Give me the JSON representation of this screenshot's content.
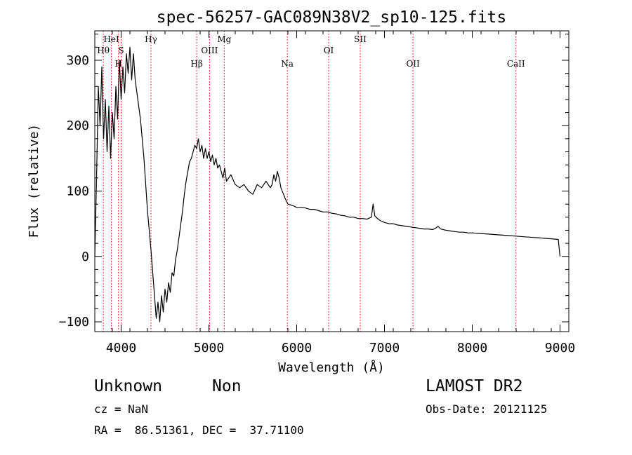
{
  "chart_data": {
    "type": "line",
    "title": "spec-56257-GAC089N38V2_sp10-125.fits",
    "xlabel": "Wavelength (Å)",
    "ylabel": "Flux (relative)",
    "xlim": [
      3700,
      9100
    ],
    "ylim": [
      -115,
      345
    ],
    "xticks": [
      4000,
      5000,
      6000,
      7000,
      8000,
      9000
    ],
    "yticks": [
      -100,
      0,
      100,
      200,
      300
    ],
    "grid": false,
    "line_color": "#000000",
    "marker_color": "#cc0000",
    "series": [
      {
        "x": [
          3700,
          3720,
          3740,
          3760,
          3780,
          3800,
          3820,
          3840,
          3860,
          3880,
          3900,
          3920,
          3940,
          3960,
          3980,
          4000,
          4020,
          4040,
          4060,
          4080,
          4100,
          4120,
          4140,
          4160,
          4180,
          4200,
          4220,
          4240,
          4260,
          4280,
          4300,
          4320,
          4340,
          4360,
          4380,
          4400,
          4420,
          4440,
          4460,
          4480,
          4500,
          4520,
          4540,
          4560,
          4580,
          4600,
          4620,
          4640,
          4660,
          4680,
          4700,
          4720,
          4740,
          4760,
          4780,
          4800,
          4820,
          4840,
          4860,
          4880,
          4900,
          4920,
          4940,
          4960,
          4980,
          5000,
          5020,
          5040,
          5060,
          5080,
          5100,
          5120,
          5140,
          5160,
          5180,
          5200,
          5250,
          5300,
          5350,
          5400,
          5450,
          5500,
          5550,
          5600,
          5650,
          5700,
          5720,
          5740,
          5760,
          5780,
          5800,
          5820,
          5850,
          5880,
          5900,
          5950,
          6000,
          6050,
          6100,
          6150,
          6200,
          6250,
          6300,
          6350,
          6400,
          6450,
          6500,
          6550,
          6600,
          6650,
          6700,
          6750,
          6800,
          6850,
          6870,
          6890,
          6920,
          6950,
          7000,
          7050,
          7100,
          7150,
          7200,
          7250,
          7300,
          7350,
          7400,
          7450,
          7500,
          7550,
          7580,
          7610,
          7640,
          7700,
          7750,
          7800,
          7850,
          7900,
          7950,
          8000,
          8100,
          8200,
          8300,
          8400,
          8500,
          8600,
          8700,
          8800,
          8900,
          8980,
          9000
        ],
        "y": [
          0,
          120,
          260,
          200,
          290,
          180,
          240,
          160,
          230,
          150,
          220,
          180,
          260,
          210,
          300,
          240,
          290,
          250,
          310,
          280,
          320,
          270,
          310,
          270,
          250,
          230,
          210,
          180,
          150,
          110,
          70,
          40,
          10,
          -25,
          -60,
          -95,
          -70,
          -100,
          -60,
          -85,
          -50,
          -70,
          -40,
          -55,
          -25,
          -30,
          -5,
          10,
          30,
          50,
          70,
          95,
          115,
          130,
          145,
          150,
          160,
          170,
          165,
          180,
          160,
          170,
          150,
          165,
          150,
          160,
          145,
          155,
          140,
          150,
          135,
          140,
          130,
          120,
          135,
          115,
          125,
          110,
          105,
          110,
          100,
          95,
          110,
          105,
          115,
          105,
          110,
          125,
          115,
          130,
          120,
          105,
          95,
          85,
          80,
          78,
          75,
          75,
          74,
          72,
          72,
          70,
          68,
          68,
          66,
          65,
          63,
          62,
          60,
          60,
          58,
          58,
          57,
          60,
          80,
          62,
          58,
          55,
          52,
          50,
          50,
          48,
          47,
          46,
          45,
          44,
          43,
          42,
          42,
          41,
          43,
          46,
          42,
          40,
          39,
          38,
          37,
          37,
          36,
          36,
          35,
          34,
          33,
          32,
          31,
          30,
          29,
          28,
          27,
          26,
          0
        ]
      }
    ],
    "line_markers": [
      {
        "label": "HeI",
        "x": 3889,
        "row": 0
      },
      {
        "label": "Hθ",
        "x": 3797,
        "row": 1
      },
      {
        "label": "S",
        "x": 4000,
        "row": 1
      },
      {
        "label": "H",
        "x": 3970,
        "row": 2
      },
      {
        "label": "Hγ",
        "x": 4340,
        "row": 0
      },
      {
        "label": "Mg",
        "x": 5175,
        "row": 0
      },
      {
        "label": "OIII",
        "x": 5007,
        "row": 1
      },
      {
        "label": "Hβ",
        "x": 4861,
        "row": 2
      },
      {
        "label": "Na",
        "x": 5893,
        "row": 2
      },
      {
        "label": "OI",
        "x": 6364,
        "row": 1
      },
      {
        "label": "SII",
        "x": 6724,
        "row": 0
      },
      {
        "label": "OII",
        "x": 7325,
        "row": 2
      },
      {
        "label": "CaII",
        "x": 8498,
        "row": 2
      }
    ]
  },
  "info": {
    "class_name": "Unknown",
    "subclass": "Non",
    "survey": "LAMOST DR2",
    "cz": "cz = NaN",
    "obs_date": "Obs-Date: 20121125",
    "coords": "RA =  86.51361, DEC =  37.71100"
  }
}
